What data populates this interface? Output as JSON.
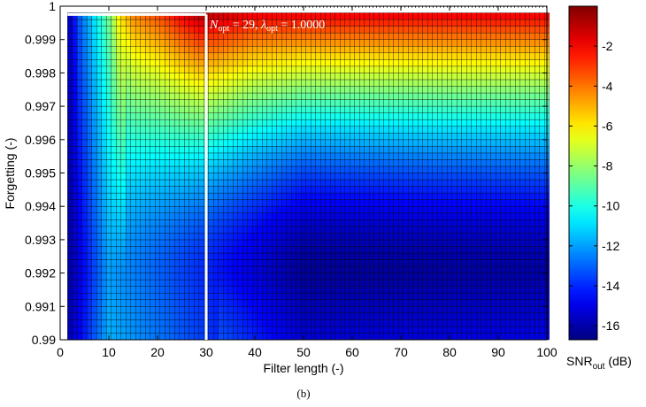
{
  "chart_data": {
    "type": "heatmap",
    "title": "",
    "xlabel": "Filter length (-)",
    "ylabel": "Forgetting (-)",
    "xlim": [
      0,
      100
    ],
    "ylim": [
      0.99,
      1.0
    ],
    "x_ticks": [
      "0",
      "10",
      "20",
      "30",
      "40",
      "50",
      "60",
      "70",
      "80",
      "90",
      "100"
    ],
    "y_ticks": [
      "0.99",
      "0.991",
      "0.992",
      "0.993",
      "0.994",
      "0.995",
      "0.996",
      "0.997",
      "0.998",
      "0.999",
      "1"
    ],
    "grid": {
      "x_start": 2,
      "x_end": 100,
      "x_step": 1,
      "y_start": 0.9901,
      "y_end": 0.9997,
      "y_step": 0.0002
    },
    "colorbar": {
      "label": "SNR",
      "label_sub": "out",
      "label_unit": " (dB)",
      "ticks": [
        "-2",
        "-4",
        "-6",
        "-8",
        "-10",
        "-12",
        "-14",
        "-16"
      ],
      "tick_values": [
        -2,
        -4,
        -6,
        -8,
        -10,
        -12,
        -14,
        -16
      ],
      "range": [
        -16.7,
        0
      ],
      "colormap": "jet"
    },
    "optimum": {
      "N": 29,
      "lambda": 1.0,
      "annotation_N": "N",
      "annotation_N_sub": "opt",
      "annotation_N_val": " = 29, ",
      "annotation_lambda": "λ",
      "annotation_lambda_sub": "opt",
      "annotation_lambda_val": " = 1.0000",
      "line_color": "#ffffff"
    },
    "snr_model": {
      "samples_at_lambda_0_9999": [
        {
          "N": 2,
          "snr": -15.5
        },
        {
          "N": 4,
          "snr": -13.0
        },
        {
          "N": 6,
          "snr": -11.5
        },
        {
          "N": 8,
          "snr": -10.0
        },
        {
          "N": 10,
          "snr": -8.5
        },
        {
          "N": 12,
          "snr": -6.0
        },
        {
          "N": 15,
          "snr": -4.0
        },
        {
          "N": 20,
          "snr": -3.0
        },
        {
          "N": 25,
          "snr": -1.5
        },
        {
          "N": 29,
          "snr": -0.5
        },
        {
          "N": 40,
          "snr": -1.5
        },
        {
          "N": 60,
          "snr": -1.5
        },
        {
          "N": 100,
          "snr": -1.5
        }
      ],
      "samples_at_lambda_0_992": [
        {
          "N": 2,
          "snr": -16.0
        },
        {
          "N": 10,
          "snr": -12.0
        },
        {
          "N": 20,
          "snr": -13.0
        },
        {
          "N": 30,
          "snr": -14.0
        },
        {
          "N": 50,
          "snr": -16.3
        },
        {
          "N": 100,
          "snr": -16.0
        }
      ]
    }
  },
  "caption": "(b)"
}
